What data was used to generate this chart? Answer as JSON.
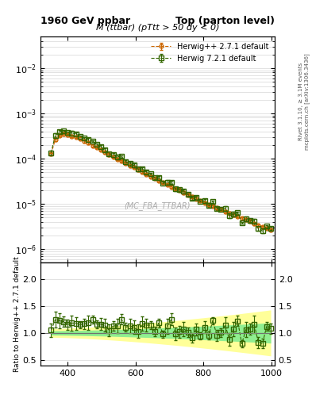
{
  "title_left": "1960 GeV ppbar",
  "title_right": "Top (parton level)",
  "main_title": "M (ttbar) (pTtt > 50 dy < 0)",
  "watermark": "(MC_FBA_TTBAR)",
  "right_label1": "Rivet 3.1.10, ≥ 3.1M events",
  "right_label2": "mcplots.cern.ch [arXiv:1306.3436]",
  "ylabel_main": "",
  "ylabel_ratio": "Ratio to Herwig++ 2.7.1 default",
  "xlabel": "",
  "legend1": "Herwig++ 2.7.1 default",
  "legend2": "Herwig 7.2.1 default",
  "color1": "#cc6600",
  "color2": "#336600",
  "xlim": [
    320,
    1010
  ],
  "ylim_main": [
    5e-07,
    0.05
  ],
  "ylim_ratio": [
    0.4,
    2.3
  ],
  "ratio_yticks": [
    0.5,
    1.0,
    1.5,
    2.0
  ],
  "x_ticks": [
    400,
    600,
    800,
    1000
  ],
  "background": "#ffffff",
  "band_green": "#90ee90",
  "band_yellow": "#ffff99"
}
